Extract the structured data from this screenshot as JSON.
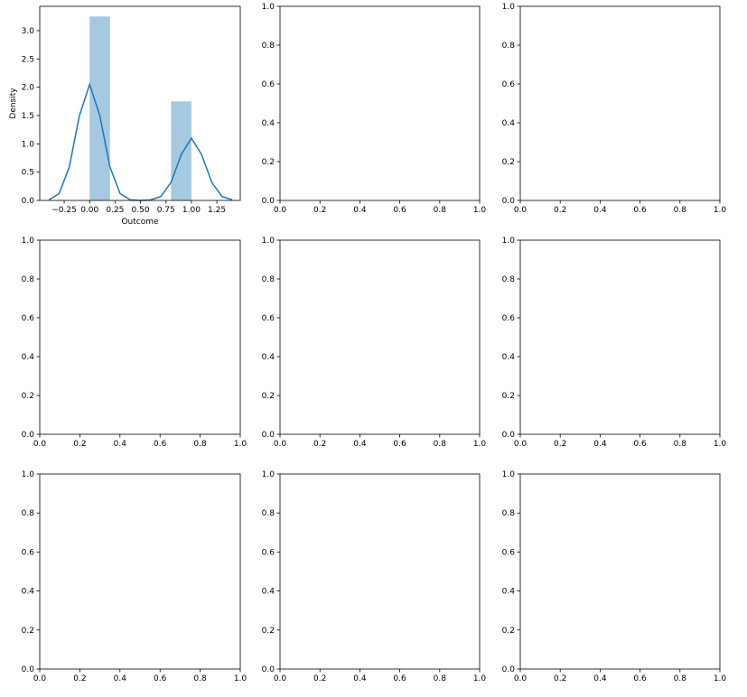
{
  "chart_data": [
    {
      "type": "histogram",
      "xlabel": "Outcome",
      "ylabel": "Density",
      "color": "#1f77b4",
      "alpha": 0.4,
      "bins": [
        0,
        0.2,
        0.4,
        0.6,
        0.8,
        1.0
      ],
      "values": [
        3.25,
        0,
        0,
        0,
        1.75
      ],
      "kde": {
        "color": "#1f77b4",
        "x": [
          -0.4,
          -0.3,
          -0.2,
          -0.1,
          0,
          0.1,
          0.2,
          0.3,
          0.4,
          0.5,
          0.6,
          0.7,
          0.8,
          0.9,
          1.0,
          1.1,
          1.2,
          1.3,
          1.4
        ],
        "values": [
          0.01,
          0.12,
          0.59,
          1.5,
          2.05,
          1.5,
          0.59,
          0.12,
          0.01,
          0,
          0.01,
          0.07,
          0.32,
          0.81,
          1.1,
          0.81,
          0.32,
          0.07,
          0.01
        ]
      },
      "xlim": [
        -0.49,
        1.48
      ],
      "ylim": [
        0,
        3.43
      ],
      "xticks": [
        {
          "value": -0.25,
          "label": "−0.25"
        },
        {
          "value": 0,
          "label": "0.00"
        },
        0.25,
        {
          "value": 0.5,
          "label": "0.50"
        },
        0.75,
        {
          "value": 1,
          "label": "1.00"
        },
        1.25
      ],
      "yticks": [
        {
          "value": 0,
          "label": "0.0"
        },
        0.5,
        {
          "value": 1,
          "label": "1.0"
        },
        1.5,
        {
          "value": 2,
          "label": "2.0"
        },
        2.5,
        {
          "value": 3,
          "label": "3.0"
        }
      ]
    },
    {
      "type": "axes",
      "xlim": [
        0,
        1
      ],
      "ylim": [
        0,
        1
      ],
      "xticks": [
        {
          "value": 0,
          "label": "0.0"
        },
        0.2,
        0.4,
        0.6,
        0.8,
        {
          "value": 1,
          "label": "1.0"
        }
      ],
      "yticks": [
        {
          "value": 0,
          "label": "0.0"
        },
        0.2,
        0.4,
        0.6,
        0.8,
        {
          "value": 1,
          "label": "1.0"
        }
      ]
    },
    {
      "type": "axes",
      "xlim": [
        0,
        1
      ],
      "ylim": [
        0,
        1
      ],
      "xticks": [
        {
          "value": 0,
          "label": "0.0"
        },
        0.2,
        0.4,
        0.6,
        0.8,
        {
          "value": 1,
          "label": "1.0"
        }
      ],
      "yticks": [
        {
          "value": 0,
          "label": "0.0"
        },
        0.2,
        0.4,
        0.6,
        0.8,
        {
          "value": 1,
          "label": "1.0"
        }
      ]
    },
    {
      "type": "axes",
      "xlim": [
        0,
        1
      ],
      "ylim": [
        0,
        1
      ],
      "xticks": [
        {
          "value": 0,
          "label": "0.0"
        },
        0.2,
        0.4,
        0.6,
        0.8,
        {
          "value": 1,
          "label": "1.0"
        }
      ],
      "yticks": [
        {
          "value": 0,
          "label": "0.0"
        },
        0.2,
        0.4,
        0.6,
        0.8,
        {
          "value": 1,
          "label": "1.0"
        }
      ]
    },
    {
      "type": "axes",
      "xlim": [
        0,
        1
      ],
      "ylim": [
        0,
        1
      ],
      "xticks": [
        {
          "value": 0,
          "label": "0.0"
        },
        0.2,
        0.4,
        0.6,
        0.8,
        {
          "value": 1,
          "label": "1.0"
        }
      ],
      "yticks": [
        {
          "value": 0,
          "label": "0.0"
        },
        0.2,
        0.4,
        0.6,
        0.8,
        {
          "value": 1,
          "label": "1.0"
        }
      ]
    },
    {
      "type": "axes",
      "xlim": [
        0,
        1
      ],
      "ylim": [
        0,
        1
      ],
      "xticks": [
        {
          "value": 0,
          "label": "0.0"
        },
        0.2,
        0.4,
        0.6,
        0.8,
        {
          "value": 1,
          "label": "1.0"
        }
      ],
      "yticks": [
        {
          "value": 0,
          "label": "0.0"
        },
        0.2,
        0.4,
        0.6,
        0.8,
        {
          "value": 1,
          "label": "1.0"
        }
      ]
    },
    {
      "type": "axes",
      "xlim": [
        0,
        1
      ],
      "ylim": [
        0,
        1
      ],
      "xticks": [
        {
          "value": 0,
          "label": "0.0"
        },
        0.2,
        0.4,
        0.6,
        0.8,
        {
          "value": 1,
          "label": "1.0"
        }
      ],
      "yticks": [
        {
          "value": 0,
          "label": "0.0"
        },
        0.2,
        0.4,
        0.6,
        0.8,
        {
          "value": 1,
          "label": "1.0"
        }
      ]
    },
    {
      "type": "axes",
      "xlim": [
        0,
        1
      ],
      "ylim": [
        0,
        1
      ],
      "xticks": [
        {
          "value": 0,
          "label": "0.0"
        },
        0.2,
        0.4,
        0.6,
        0.8,
        {
          "value": 1,
          "label": "1.0"
        }
      ],
      "yticks": [
        {
          "value": 0,
          "label": "0.0"
        },
        0.2,
        0.4,
        0.6,
        0.8,
        {
          "value": 1,
          "label": "1.0"
        }
      ]
    },
    {
      "type": "axes",
      "xlim": [
        0,
        1
      ],
      "ylim": [
        0,
        1
      ],
      "xticks": [
        {
          "value": 0,
          "label": "0.0"
        },
        0.2,
        0.4,
        0.6,
        0.8,
        {
          "value": 1,
          "label": "1.0"
        }
      ],
      "yticks": [
        {
          "value": 0,
          "label": "0.0"
        },
        0.2,
        0.4,
        0.6,
        0.8,
        {
          "value": 1,
          "label": "1.0"
        }
      ]
    }
  ]
}
